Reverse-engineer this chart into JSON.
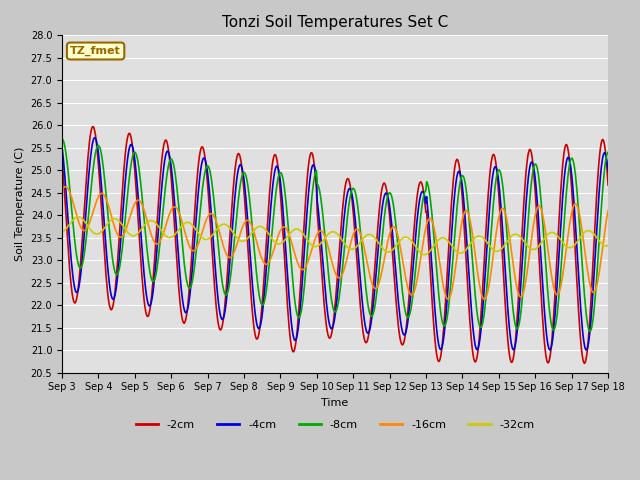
{
  "title": "Tonzi Soil Temperatures Set C",
  "xlabel": "Time",
  "ylabel": "Soil Temperature (C)",
  "ylim": [
    20.5,
    28.0
  ],
  "yticks": [
    20.5,
    21.0,
    21.5,
    22.0,
    22.5,
    23.0,
    23.5,
    24.0,
    24.5,
    25.0,
    25.5,
    26.0,
    26.5,
    27.0,
    27.5,
    28.0
  ],
  "x_labels": [
    "Sep 3",
    "Sep 4",
    "Sep 5",
    "Sep 6",
    "Sep 7",
    "Sep 8",
    "Sep 9",
    "Sep 10",
    "Sep 11",
    "Sep 12",
    "Sep 13",
    "Sep 14",
    "Sep 15",
    "Sep 16",
    "Sep 17",
    "Sep 18"
  ],
  "series": {
    "-2cm": {
      "color": "#cc0000",
      "lw": 1.2
    },
    "-4cm": {
      "color": "#0000dd",
      "lw": 1.2
    },
    "-8cm": {
      "color": "#00aa00",
      "lw": 1.2
    },
    "-16cm": {
      "color": "#ff8800",
      "lw": 1.2
    },
    "-32cm": {
      "color": "#cccc00",
      "lw": 1.2
    }
  },
  "annotation_text": "TZ_fmet",
  "annotation_color": "#996600",
  "annotation_bg": "#ffffcc",
  "fig_bg": "#c8c8c8",
  "plot_bg": "#e0e0e0",
  "grid_color": "#ffffff",
  "title_fontsize": 11,
  "tick_fontsize": 7,
  "label_fontsize": 8
}
